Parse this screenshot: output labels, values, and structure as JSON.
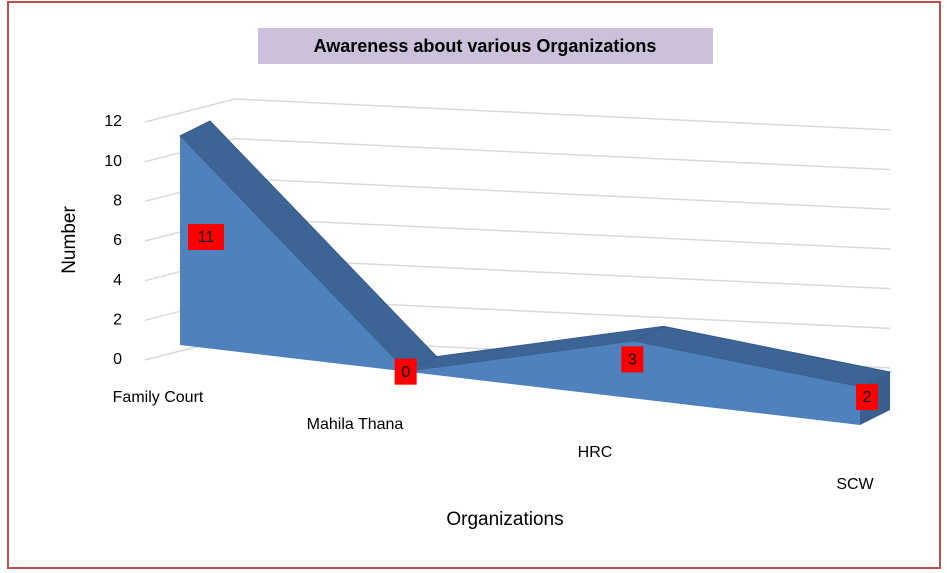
{
  "chart_data": {
    "type": "area3d",
    "title": "Awareness about various Organizations",
    "xlabel": "Organizations",
    "ylabel": "Number",
    "categories": [
      "Family Court",
      "Mahila Thana",
      "HRC",
      "SCW"
    ],
    "values": [
      11,
      0,
      3,
      2
    ],
    "color": "#4f81bd",
    "ylim": [
      0,
      12
    ],
    "yticks": [
      0,
      2,
      4,
      6,
      8,
      10,
      12
    ],
    "grid": true
  }
}
